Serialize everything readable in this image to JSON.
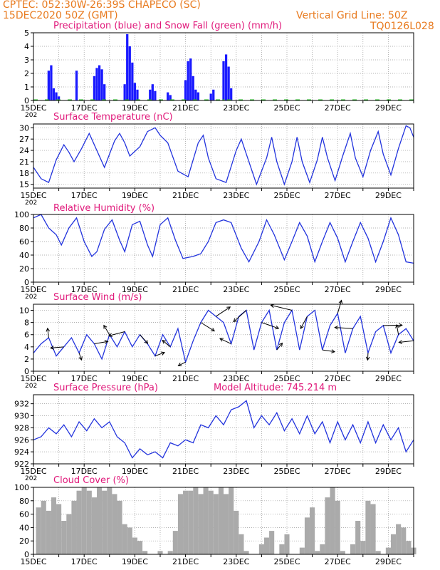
{
  "header": {
    "line1": "CPTEC:   052:30W-26:39S   CHAPECO (SC)",
    "line2": "15DEC2020 50Z (GMT)",
    "vgrid": "Vertical Grid Line: 50Z",
    "code": "TQ0126L028"
  },
  "colors": {
    "header": "#e87a1e",
    "title": "#e0187a",
    "line": "#2233dd",
    "precip": "#1a1aff",
    "snow": "#22bb22",
    "cloud": "#aaaaaa",
    "grid": "#999999"
  },
  "x_axis": {
    "labels": [
      "15DEC",
      "17DEC",
      "19DEC",
      "21DEC",
      "23DEC",
      "25DEC",
      "27DEC",
      "29DEC"
    ],
    "cut_label": "202"
  },
  "chart_data": [
    {
      "type": "bar",
      "title": "Precipitation (blue) and Snow Fall (green) (mm/h)",
      "ylim": [
        0,
        5
      ],
      "yticks": [
        0,
        1,
        2,
        3,
        4,
        5
      ],
      "x_range_days": [
        0,
        15
      ],
      "series": [
        {
          "name": "Precipitation",
          "color": "#1a1aff",
          "points": [
            [
              0.6,
              2.2
            ],
            [
              0.7,
              2.6
            ],
            [
              0.8,
              0.9
            ],
            [
              0.9,
              0.6
            ],
            [
              1.0,
              0.3
            ],
            [
              1.7,
              2.2
            ],
            [
              2.4,
              1.8
            ],
            [
              2.5,
              2.4
            ],
            [
              2.6,
              2.6
            ],
            [
              2.7,
              2.3
            ],
            [
              2.8,
              1.2
            ],
            [
              3.6,
              1.2
            ],
            [
              3.7,
              4.9
            ],
            [
              3.8,
              4.0
            ],
            [
              3.9,
              2.8
            ],
            [
              4.0,
              1.3
            ],
            [
              4.1,
              0.8
            ],
            [
              4.6,
              0.8
            ],
            [
              4.7,
              1.2
            ],
            [
              4.8,
              0.7
            ],
            [
              5.3,
              0.6
            ],
            [
              5.4,
              0.4
            ],
            [
              6.0,
              1.5
            ],
            [
              6.1,
              2.9
            ],
            [
              6.2,
              3.1
            ],
            [
              6.3,
              1.8
            ],
            [
              6.4,
              0.8
            ],
            [
              6.5,
              0.6
            ],
            [
              7.0,
              0.5
            ],
            [
              7.1,
              0.8
            ],
            [
              7.5,
              2.9
            ],
            [
              7.6,
              3.4
            ],
            [
              7.7,
              2.5
            ],
            [
              7.8,
              0.9
            ]
          ]
        },
        {
          "name": "Snow Fall",
          "color": "#22bb22",
          "points": [
            [
              7.5,
              0.0
            ]
          ]
        }
      ]
    },
    {
      "type": "line",
      "title": "Surface Temperature (nC)",
      "ylim": [
        14,
        31
      ],
      "yticks": [
        15,
        18,
        21,
        24,
        27,
        30
      ],
      "x_range_days": [
        0,
        15
      ],
      "points": [
        [
          0.0,
          19.5
        ],
        [
          0.3,
          16.5
        ],
        [
          0.6,
          15.5
        ],
        [
          0.9,
          21.5
        ],
        [
          1.2,
          25.5
        ],
        [
          1.4,
          23.5
        ],
        [
          1.6,
          21.0
        ],
        [
          1.9,
          24.5
        ],
        [
          2.2,
          28.5
        ],
        [
          2.5,
          24.0
        ],
        [
          2.8,
          19.5
        ],
        [
          3.2,
          26.5
        ],
        [
          3.4,
          28.5
        ],
        [
          3.6,
          26.0
        ],
        [
          3.8,
          22.5
        ],
        [
          4.2,
          25.0
        ],
        [
          4.5,
          29.0
        ],
        [
          4.8,
          30.0
        ],
        [
          5.0,
          28.0
        ],
        [
          5.3,
          26.0
        ],
        [
          5.7,
          18.5
        ],
        [
          6.1,
          17.0
        ],
        [
          6.5,
          26.0
        ],
        [
          6.7,
          28.0
        ],
        [
          6.9,
          22.0
        ],
        [
          7.2,
          16.5
        ],
        [
          7.6,
          15.5
        ],
        [
          8.0,
          24.0
        ],
        [
          8.2,
          27.0
        ],
        [
          8.5,
          21.0
        ],
        [
          8.8,
          15.0
        ],
        [
          9.2,
          22.0
        ],
        [
          9.4,
          27.5
        ],
        [
          9.6,
          21.0
        ],
        [
          9.9,
          15.0
        ],
        [
          10.2,
          21.0
        ],
        [
          10.4,
          27.5
        ],
        [
          10.6,
          21.0
        ],
        [
          10.9,
          15.5
        ],
        [
          11.2,
          21.5
        ],
        [
          11.4,
          27.5
        ],
        [
          11.6,
          22.0
        ],
        [
          11.9,
          16.0
        ],
        [
          12.2,
          22.5
        ],
        [
          12.5,
          28.5
        ],
        [
          12.7,
          22.0
        ],
        [
          13.0,
          17.0
        ],
        [
          13.3,
          24.0
        ],
        [
          13.6,
          29.0
        ],
        [
          13.8,
          23.0
        ],
        [
          14.1,
          17.5
        ],
        [
          14.4,
          24.5
        ],
        [
          14.7,
          30.5
        ],
        [
          14.85,
          30.0
        ],
        [
          15.0,
          27.5
        ]
      ]
    },
    {
      "type": "line",
      "title": "Relative Humidity (%)",
      "ylim": [
        0,
        100
      ],
      "yticks": [
        0,
        20,
        40,
        60,
        80,
        100
      ],
      "x_range_days": [
        0,
        15
      ],
      "points": [
        [
          0.0,
          95.0
        ],
        [
          0.3,
          100.0
        ],
        [
          0.6,
          80.0
        ],
        [
          0.9,
          70.0
        ],
        [
          1.1,
          55.0
        ],
        [
          1.4,
          80.0
        ],
        [
          1.7,
          95.0
        ],
        [
          2.0,
          60.0
        ],
        [
          2.3,
          38.0
        ],
        [
          2.5,
          45.0
        ],
        [
          2.8,
          78.0
        ],
        [
          3.1,
          92.0
        ],
        [
          3.4,
          62.0
        ],
        [
          3.6,
          45.0
        ],
        [
          3.9,
          85.0
        ],
        [
          4.2,
          90.0
        ],
        [
          4.5,
          55.0
        ],
        [
          4.7,
          38.0
        ],
        [
          5.0,
          85.0
        ],
        [
          5.3,
          95.0
        ],
        [
          5.6,
          62.0
        ],
        [
          5.9,
          35.0
        ],
        [
          6.3,
          38.0
        ],
        [
          6.6,
          42.0
        ],
        [
          6.9,
          60.0
        ],
        [
          7.2,
          88.0
        ],
        [
          7.5,
          92.0
        ],
        [
          7.8,
          88.0
        ],
        [
          8.2,
          50.0
        ],
        [
          8.5,
          30.0
        ],
        [
          8.9,
          60.0
        ],
        [
          9.2,
          92.0
        ],
        [
          9.5,
          70.0
        ],
        [
          9.9,
          33.0
        ],
        [
          10.2,
          60.0
        ],
        [
          10.5,
          88.0
        ],
        [
          10.8,
          68.0
        ],
        [
          11.1,
          30.0
        ],
        [
          11.4,
          60.0
        ],
        [
          11.7,
          88.0
        ],
        [
          12.0,
          65.0
        ],
        [
          12.3,
          30.0
        ],
        [
          12.6,
          60.0
        ],
        [
          12.9,
          88.0
        ],
        [
          13.2,
          65.0
        ],
        [
          13.5,
          30.0
        ],
        [
          13.8,
          60.0
        ],
        [
          14.1,
          95.0
        ],
        [
          14.4,
          70.0
        ],
        [
          14.7,
          30.0
        ],
        [
          15.0,
          28.0
        ]
      ]
    },
    {
      "type": "line",
      "title": "Surface Wind (m/s)",
      "ylim": [
        0,
        11
      ],
      "yticks": [
        0,
        2,
        4,
        6,
        8,
        10
      ],
      "x_range_days": [
        0,
        15
      ],
      "points": [
        [
          0.0,
          3.0
        ],
        [
          0.3,
          4.5
        ],
        [
          0.6,
          5.5
        ],
        [
          0.9,
          2.5
        ],
        [
          1.2,
          4.0
        ],
        [
          1.5,
          5.5
        ],
        [
          1.8,
          3.0
        ],
        [
          2.1,
          6.0
        ],
        [
          2.4,
          4.5
        ],
        [
          2.7,
          2.0
        ],
        [
          3.0,
          6.0
        ],
        [
          3.3,
          4.0
        ],
        [
          3.6,
          6.5
        ],
        [
          3.9,
          4.0
        ],
        [
          4.2,
          6.0
        ],
        [
          4.5,
          4.5
        ],
        [
          4.8,
          2.5
        ],
        [
          5.1,
          6.0
        ],
        [
          5.4,
          4.0
        ],
        [
          5.7,
          7.0
        ],
        [
          6.0,
          1.5
        ],
        [
          6.3,
          5.0
        ],
        [
          6.6,
          8.0
        ],
        [
          6.9,
          10.0
        ],
        [
          7.2,
          9.0
        ],
        [
          7.5,
          8.0
        ],
        [
          7.8,
          4.5
        ],
        [
          8.1,
          9.0
        ],
        [
          8.4,
          10.0
        ],
        [
          8.7,
          3.5
        ],
        [
          9.0,
          8.0
        ],
        [
          9.3,
          10.0
        ],
        [
          9.6,
          3.5
        ],
        [
          9.9,
          8.0
        ],
        [
          10.2,
          10.0
        ],
        [
          10.5,
          3.5
        ],
        [
          10.8,
          9.0
        ],
        [
          11.1,
          10.0
        ],
        [
          11.4,
          3.5
        ],
        [
          11.7,
          7.5
        ],
        [
          12.0,
          9.5
        ],
        [
          12.3,
          3.0
        ],
        [
          12.6,
          7.0
        ],
        [
          12.9,
          9.0
        ],
        [
          13.2,
          3.0
        ],
        [
          13.5,
          6.5
        ],
        [
          13.8,
          7.5
        ],
        [
          14.1,
          3.0
        ],
        [
          14.4,
          6.0
        ],
        [
          14.7,
          7.0
        ],
        [
          15.0,
          5.0
        ]
      ]
    },
    {
      "type": "line",
      "title": "Surface Pressure (hPa)",
      "annotation": "Model Altitude: 745.214 m",
      "ylim": [
        922,
        933.5
      ],
      "yticks": [
        922,
        924,
        926,
        928,
        930,
        932
      ],
      "x_range_days": [
        0,
        15
      ],
      "points": [
        [
          0.0,
          926.0
        ],
        [
          0.3,
          926.5
        ],
        [
          0.6,
          928.0
        ],
        [
          0.9,
          927.0
        ],
        [
          1.2,
          928.5
        ],
        [
          1.5,
          926.5
        ],
        [
          1.8,
          929.0
        ],
        [
          2.1,
          927.5
        ],
        [
          2.4,
          929.5
        ],
        [
          2.7,
          928.0
        ],
        [
          3.0,
          929.0
        ],
        [
          3.3,
          926.5
        ],
        [
          3.6,
          925.5
        ],
        [
          3.9,
          923.0
        ],
        [
          4.2,
          924.5
        ],
        [
          4.5,
          923.5
        ],
        [
          4.8,
          924.0
        ],
        [
          5.1,
          923.0
        ],
        [
          5.4,
          925.5
        ],
        [
          5.7,
          925.0
        ],
        [
          6.0,
          926.0
        ],
        [
          6.3,
          925.5
        ],
        [
          6.6,
          928.5
        ],
        [
          6.9,
          928.0
        ],
        [
          7.2,
          930.0
        ],
        [
          7.5,
          928.5
        ],
        [
          7.8,
          931.0
        ],
        [
          8.1,
          931.5
        ],
        [
          8.4,
          932.5
        ],
        [
          8.7,
          928.0
        ],
        [
          9.0,
          930.0
        ],
        [
          9.3,
          928.5
        ],
        [
          9.6,
          930.5
        ],
        [
          9.9,
          927.5
        ],
        [
          10.2,
          929.5
        ],
        [
          10.5,
          927.0
        ],
        [
          10.8,
          930.0
        ],
        [
          11.1,
          927.0
        ],
        [
          11.4,
          929.0
        ],
        [
          11.7,
          925.5
        ],
        [
          12.0,
          929.0
        ],
        [
          12.3,
          926.0
        ],
        [
          12.6,
          928.5
        ],
        [
          12.9,
          925.5
        ],
        [
          13.2,
          929.0
        ],
        [
          13.5,
          925.5
        ],
        [
          13.8,
          928.5
        ],
        [
          14.1,
          926.0
        ],
        [
          14.4,
          928.0
        ],
        [
          14.7,
          924.0
        ],
        [
          15.0,
          926.0
        ]
      ]
    },
    {
      "type": "bar",
      "title": "Cloud Cover (%)",
      "ylim": [
        0,
        100
      ],
      "yticks": [
        0,
        20,
        40,
        60,
        80,
        100
      ],
      "x_range_days": [
        0,
        15
      ],
      "points": [
        [
          0.2,
          70.0
        ],
        [
          0.4,
          80.0
        ],
        [
          0.6,
          65.0
        ],
        [
          0.8,
          85.0
        ],
        [
          1.0,
          75.0
        ],
        [
          1.2,
          50.0
        ],
        [
          1.4,
          60.0
        ],
        [
          1.6,
          80.0
        ],
        [
          1.8,
          95.0
        ],
        [
          2.0,
          100.0
        ],
        [
          2.2,
          95.0
        ],
        [
          2.4,
          85.0
        ],
        [
          2.6,
          100.0
        ],
        [
          2.8,
          95.0
        ],
        [
          3.0,
          100.0
        ],
        [
          3.2,
          90.0
        ],
        [
          3.4,
          80.0
        ],
        [
          3.6,
          45.0
        ],
        [
          3.8,
          40.0
        ],
        [
          4.0,
          25.0
        ],
        [
          4.2,
          20.0
        ],
        [
          4.4,
          5.0
        ],
        [
          4.6,
          0.0
        ],
        [
          4.8,
          0.0
        ],
        [
          5.0,
          5.0
        ],
        [
          5.2,
          0.0
        ],
        [
          5.4,
          5.0
        ],
        [
          5.6,
          35.0
        ],
        [
          5.8,
          90.0
        ],
        [
          6.0,
          95.0
        ],
        [
          6.2,
          95.0
        ],
        [
          6.4,
          100.0
        ],
        [
          6.6,
          90.0
        ],
        [
          6.8,
          100.0
        ],
        [
          7.0,
          95.0
        ],
        [
          7.2,
          90.0
        ],
        [
          7.4,
          100.0
        ],
        [
          7.6,
          90.0
        ],
        [
          7.8,
          100.0
        ],
        [
          8.0,
          65.0
        ],
        [
          8.2,
          30.0
        ],
        [
          8.4,
          5.0
        ],
        [
          8.6,
          0.0
        ],
        [
          8.8,
          0.0
        ],
        [
          9.0,
          15.0
        ],
        [
          9.2,
          25.0
        ],
        [
          9.4,
          35.0
        ],
        [
          9.6,
          0.0
        ],
        [
          9.8,
          15.0
        ],
        [
          10.0,
          30.0
        ],
        [
          10.2,
          0.0
        ],
        [
          10.4,
          0.0
        ],
        [
          10.6,
          10.0
        ],
        [
          10.8,
          55.0
        ],
        [
          11.0,
          70.0
        ],
        [
          11.2,
          5.0
        ],
        [
          11.4,
          15.0
        ],
        [
          11.6,
          85.0
        ],
        [
          11.8,
          100.0
        ],
        [
          12.0,
          80.0
        ],
        [
          12.2,
          5.0
        ],
        [
          12.4,
          0.0
        ],
        [
          12.6,
          15.0
        ],
        [
          12.8,
          50.0
        ],
        [
          13.0,
          20.0
        ],
        [
          13.2,
          80.0
        ],
        [
          13.4,
          75.0
        ],
        [
          13.6,
          5.0
        ],
        [
          13.8,
          0.0
        ],
        [
          14.0,
          10.0
        ],
        [
          14.2,
          30.0
        ],
        [
          14.4,
          45.0
        ],
        [
          14.6,
          40.0
        ],
        [
          14.8,
          20.0
        ],
        [
          15.0,
          10.0
        ]
      ]
    }
  ]
}
